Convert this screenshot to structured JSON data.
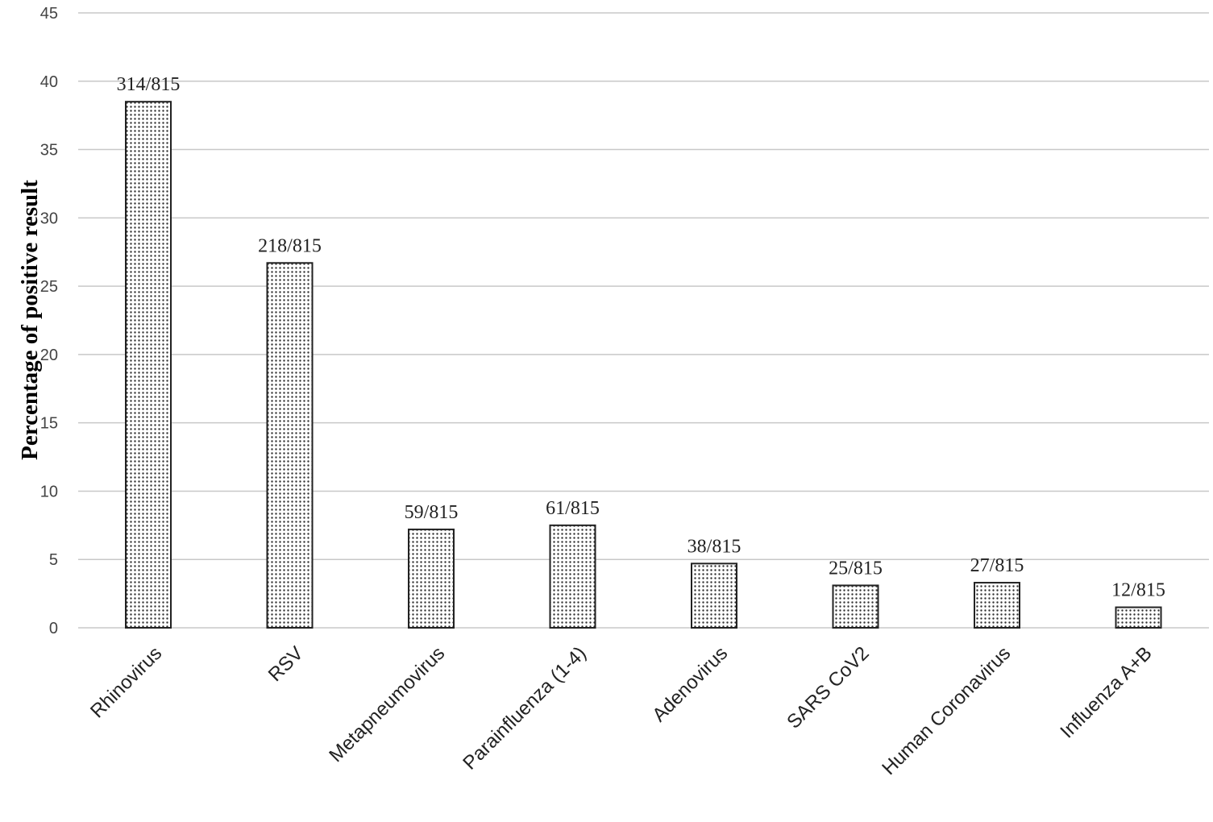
{
  "chart_data": {
    "type": "bar",
    "title": "",
    "xlabel": "",
    "ylabel": "Percentage of positive result",
    "ylim": [
      0,
      45
    ],
    "yticks": [
      0,
      5,
      10,
      15,
      20,
      25,
      30,
      35,
      40,
      45
    ],
    "grid": true,
    "categories": [
      "Rhinovirus",
      "RSV",
      "Metapneumovirus",
      "Parainfluenza (1-4)",
      "Adenovirus",
      "SARS CoV2",
      "Human Coronavirus",
      "Influenza A+B"
    ],
    "values": [
      38.5,
      26.7,
      7.2,
      7.5,
      4.7,
      3.1,
      3.3,
      1.5
    ],
    "data_labels": [
      "314/815",
      "218/815",
      "59/815",
      "61/815",
      "38/815",
      "25/815",
      "27/815",
      "12/815"
    ],
    "bar_fill": "dotted pattern",
    "colors": {
      "bar_edge": "#222222",
      "dots": "#333333",
      "grid": "#c8c8c8"
    }
  }
}
